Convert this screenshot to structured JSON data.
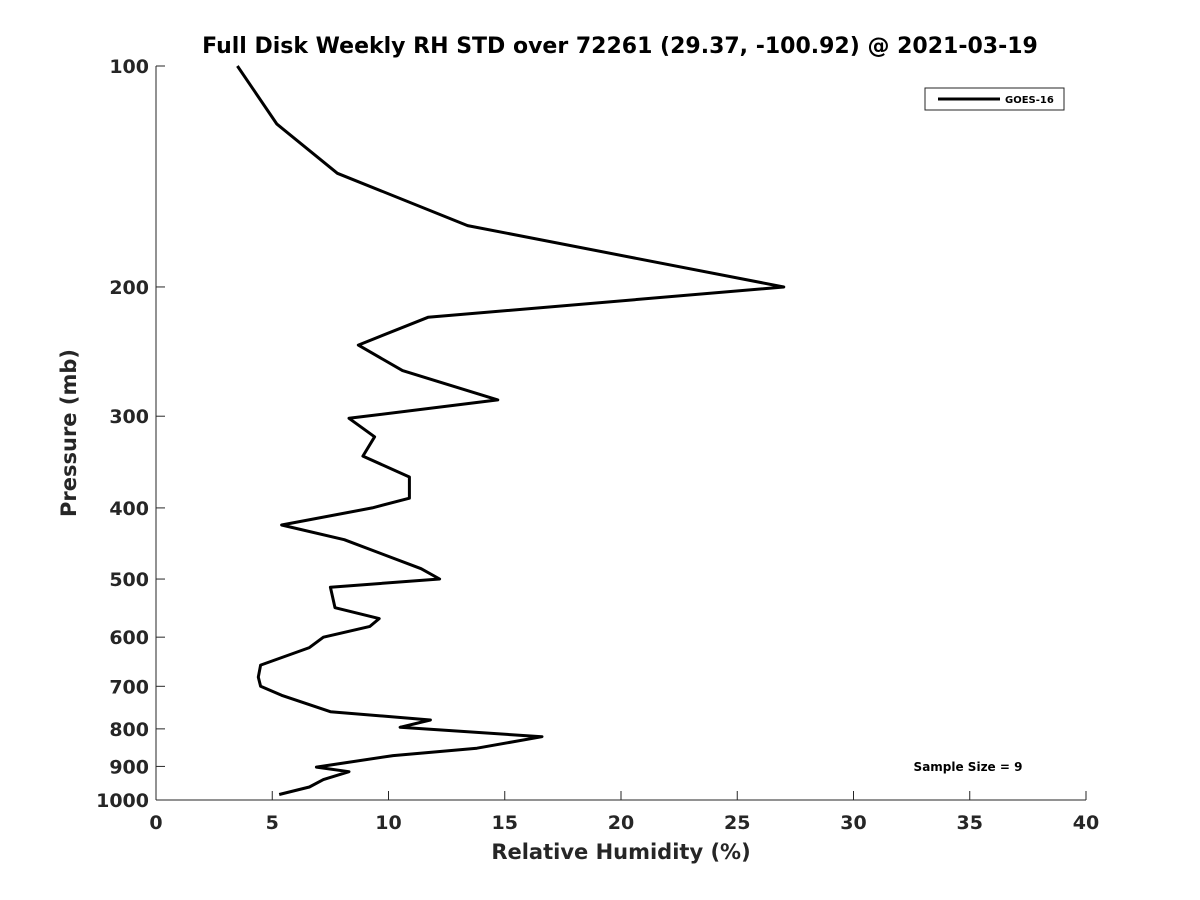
{
  "chart_data": {
    "type": "line",
    "title": "Full Disk Weekly RH STD over 72261 (29.37, -100.92) @ 2021-03-19",
    "xlabel": "Relative Humidity (%)",
    "ylabel": "Pressure (mb)",
    "xlim": [
      0,
      40
    ],
    "ylim": [
      100,
      1000
    ],
    "yscale": "log",
    "yreversed": true,
    "grid": false,
    "x_ticks": [
      "0",
      "5",
      "10",
      "15",
      "20",
      "25",
      "30",
      "35",
      "40"
    ],
    "y_ticks": [
      "100",
      "200",
      "300",
      "400",
      "500",
      "600",
      "700",
      "800",
      "900",
      "1000"
    ],
    "legend": {
      "position": "top-right",
      "entries": [
        "GOES-16"
      ]
    },
    "annotation": "Sample Size = 9",
    "series": [
      {
        "name": "GOES-16",
        "color": "#000000",
        "points": [
          [
            3.5,
            100
          ],
          [
            5.2,
            120
          ],
          [
            7.8,
            140
          ],
          [
            13.4,
            165
          ],
          [
            27.0,
            200
          ],
          [
            11.7,
            220
          ],
          [
            8.7,
            240
          ],
          [
            10.6,
            260
          ],
          [
            14.7,
            285
          ],
          [
            8.3,
            302
          ],
          [
            9.4,
            320
          ],
          [
            8.9,
            340
          ],
          [
            10.9,
            363
          ],
          [
            10.9,
            388
          ],
          [
            9.3,
            400
          ],
          [
            5.4,
            422
          ],
          [
            8.1,
            442
          ],
          [
            11.4,
            484
          ],
          [
            12.2,
            500
          ],
          [
            7.5,
            513
          ],
          [
            7.7,
            547
          ],
          [
            9.6,
            566
          ],
          [
            9.2,
            580
          ],
          [
            7.2,
            600
          ],
          [
            6.6,
            620
          ],
          [
            4.5,
            655
          ],
          [
            4.4,
            680
          ],
          [
            4.5,
            700
          ],
          [
            5.4,
            720
          ],
          [
            7.5,
            758
          ],
          [
            11.8,
            778
          ],
          [
            10.5,
            796
          ],
          [
            16.6,
            820
          ],
          [
            13.8,
            850
          ],
          [
            10.2,
            870
          ],
          [
            6.9,
            902
          ],
          [
            8.3,
            915
          ],
          [
            7.2,
            938
          ],
          [
            6.6,
            960
          ],
          [
            5.3,
            983
          ]
        ]
      }
    ]
  }
}
